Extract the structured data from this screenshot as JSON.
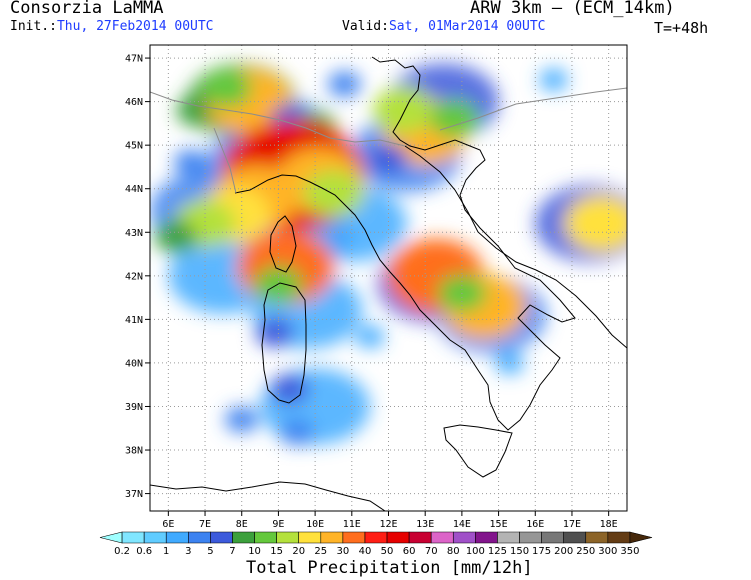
{
  "header": {
    "organization": "Consorzia LaMMA",
    "model": "ARW 3km – (ECM_14km)",
    "init_label": "Init.:",
    "init_value": "Thu, 27Feb2014 00UTC",
    "valid_label": "Valid:",
    "valid_value": "Sat, 01Mar2014 00UTC",
    "forecast_step": "T=+48h"
  },
  "map": {
    "lat_labels": [
      "47N",
      "46N",
      "45N",
      "44N",
      "43N",
      "42N",
      "41N",
      "40N",
      "39N",
      "38N",
      "37N"
    ],
    "lat_values": [
      47,
      46,
      45,
      44,
      43,
      42,
      41,
      40,
      39,
      38,
      37
    ],
    "lon_labels": [
      "6E",
      "7E",
      "8E",
      "9E",
      "10E",
      "11E",
      "12E",
      "13E",
      "14E",
      "15E",
      "16E",
      "17E",
      "18E"
    ],
    "lon_values": [
      6,
      7,
      8,
      9,
      10,
      11,
      12,
      13,
      14,
      15,
      16,
      17,
      18
    ],
    "extent": {
      "lon_min": 5.5,
      "lon_max": 18.5,
      "lat_min": 36.6,
      "lat_max": 47.3
    },
    "precip_cells": [
      {
        "lon": 6.8,
        "lat": 45.8,
        "v": 7
      },
      {
        "lon": 8.2,
        "lat": 46.0,
        "v": 25
      },
      {
        "lon": 7.6,
        "lat": 46.3,
        "v": 10
      },
      {
        "lon": 9.3,
        "lat": 45.6,
        "v": 5
      },
      {
        "lon": 10.0,
        "lat": 45.4,
        "v": 7
      },
      {
        "lon": 8.8,
        "lat": 44.5,
        "v": 30
      },
      {
        "lon": 9.4,
        "lat": 44.3,
        "v": 50
      },
      {
        "lon": 10.1,
        "lat": 44.2,
        "v": 25
      },
      {
        "lon": 8.4,
        "lat": 43.8,
        "v": 25
      },
      {
        "lon": 7.8,
        "lat": 43.4,
        "v": 20
      },
      {
        "lon": 7.0,
        "lat": 43.2,
        "v": 15
      },
      {
        "lon": 6.2,
        "lat": 42.9,
        "v": 7
      },
      {
        "lon": 10.5,
        "lat": 43.9,
        "v": 15
      },
      {
        "lon": 9.2,
        "lat": 42.2,
        "v": 30
      },
      {
        "lon": 9.0,
        "lat": 41.8,
        "v": 10
      },
      {
        "lon": 8.9,
        "lat": 40.7,
        "v": 5
      },
      {
        "lon": 9.3,
        "lat": 39.4,
        "v": 5
      },
      {
        "lon": 13.3,
        "lat": 42.0,
        "v": 30
      },
      {
        "lon": 14.6,
        "lat": 41.3,
        "v": 25
      },
      {
        "lon": 14.0,
        "lat": 41.6,
        "v": 10
      },
      {
        "lon": 13.0,
        "lat": 45.3,
        "v": 25
      },
      {
        "lon": 12.4,
        "lat": 45.8,
        "v": 15
      },
      {
        "lon": 13.8,
        "lat": 45.6,
        "v": 10
      },
      {
        "lon": 17.8,
        "lat": 43.2,
        "v": 20
      },
      {
        "lon": 6.6,
        "lat": 44.6,
        "v": 3
      },
      {
        "lon": 12.0,
        "lat": 44.7,
        "v": 5
      },
      {
        "lon": 9.5,
        "lat": 38.4,
        "v": 3
      },
      {
        "lon": 8.0,
        "lat": 38.7,
        "v": 3
      },
      {
        "lon": 11.5,
        "lat": 40.6,
        "v": 1
      },
      {
        "lon": 15.3,
        "lat": 40.0,
        "v": 1
      },
      {
        "lon": 10.8,
        "lat": 46.4,
        "v": 3
      },
      {
        "lon": 16.5,
        "lat": 46.5,
        "v": 1
      }
    ]
  },
  "colorbar": {
    "title": "Total Precipitation [mm/12h]",
    "thresholds": [
      "0.2",
      "0.6",
      "1",
      "3",
      "5",
      "7",
      "10",
      "15",
      "20",
      "25",
      "30",
      "40",
      "50",
      "60",
      "70",
      "80",
      "100",
      "125",
      "150",
      "175",
      "200",
      "250",
      "300",
      "350"
    ],
    "colors": [
      "#a0ffff",
      "#80e6ff",
      "#60ccff",
      "#40aaff",
      "#3c82f0",
      "#3c5adc",
      "#3ca03c",
      "#64c83c",
      "#b4e13c",
      "#ffe13c",
      "#ffb428",
      "#ff6e1e",
      "#ff1e14",
      "#e60000",
      "#c80032",
      "#dc64c8",
      "#a050c8",
      "#82148c",
      "#b4b4b4",
      "#969696",
      "#787878",
      "#505050",
      "#8c6428",
      "#643c14",
      "#46280a"
    ]
  }
}
